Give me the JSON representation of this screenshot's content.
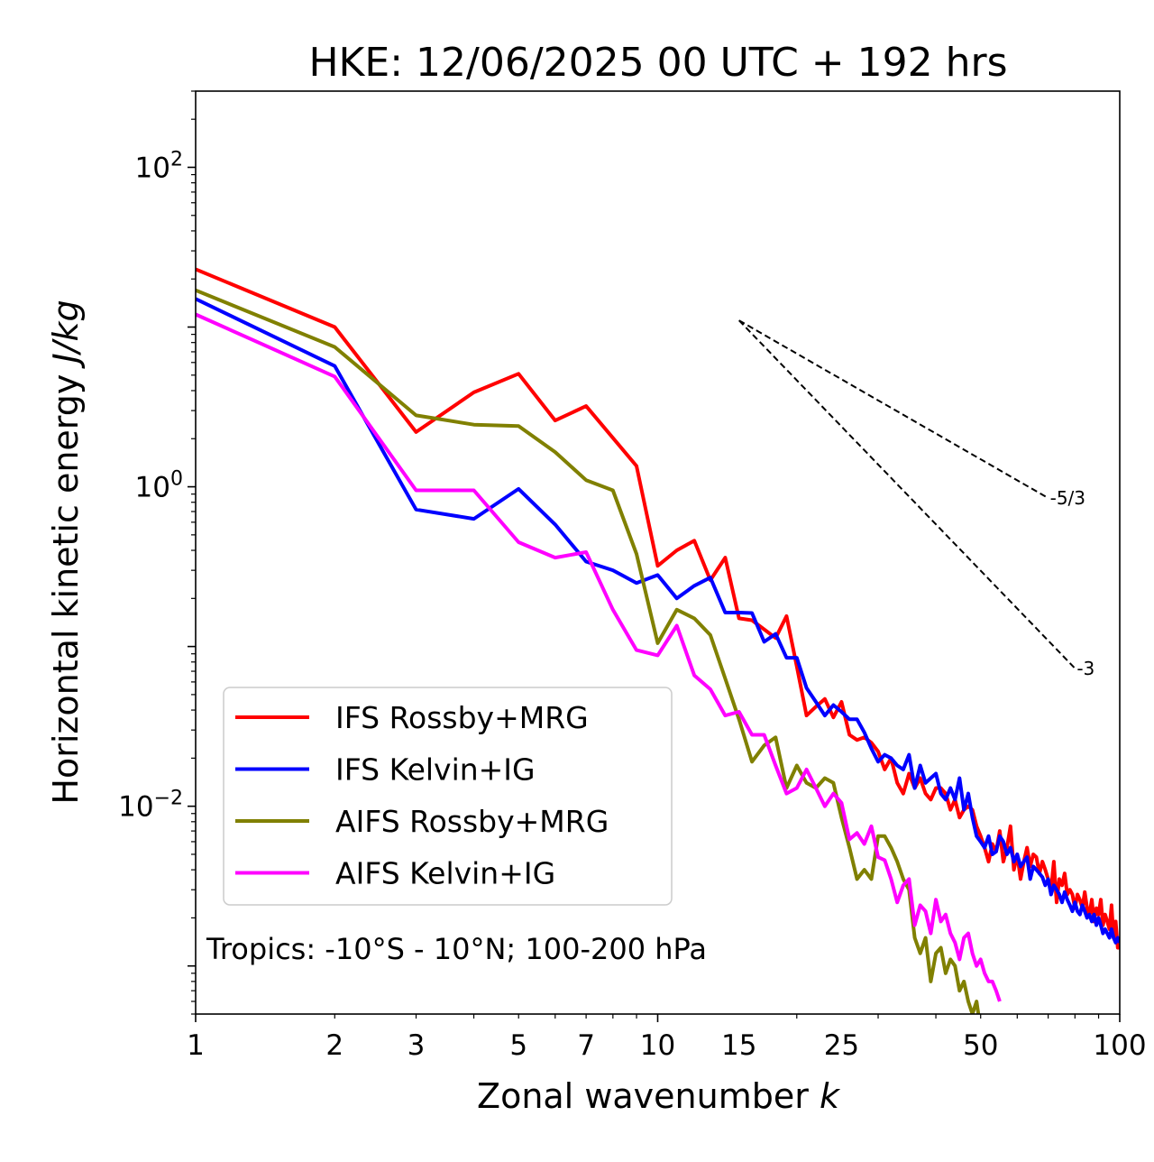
{
  "chart_data": {
    "type": "line",
    "title": "HKE: 12/06/2025 00 UTC + 192 hrs",
    "xlabel": "Zonal wavenumber k",
    "ylabel": "Horizontal kinetic energy J/kg",
    "xscale": "log",
    "yscale": "log",
    "xlim": [
      1,
      100
    ],
    "ylim": [
      0.0005,
      300
    ],
    "x_ticks": [
      1,
      2,
      3,
      5,
      7,
      10,
      15,
      25,
      50,
      100
    ],
    "x_tick_labels": [
      "1",
      "2",
      "3",
      "5",
      "7",
      "10",
      "15",
      "25",
      "50",
      "100"
    ],
    "y_ticks": [
      0.01,
      1,
      100
    ],
    "y_tick_labels": [
      "10",
      "10",
      "10"
    ],
    "y_tick_exponents": [
      "−2",
      "0",
      "2"
    ],
    "annotation": "Tropics: -10°S - 10°N; 100-200 hPa",
    "reference_lines": [
      {
        "label": "-5/3",
        "slope": -1.6667,
        "x": [
          15,
          70
        ],
        "y": [
          11,
          0.85
        ]
      },
      {
        "label": "-3",
        "slope": -3,
        "x": [
          15,
          80
        ],
        "y": [
          11,
          0.073
        ]
      }
    ],
    "legend": {
      "placement": "lower-left"
    },
    "series": [
      {
        "name": "IFS Rossby+MRG",
        "color": "#ff0000",
        "x": [
          1,
          2,
          3,
          4,
          5,
          6,
          7,
          9,
          10,
          11,
          12,
          13,
          14,
          15,
          16,
          17,
          18,
          19,
          20,
          21,
          22,
          23,
          24,
          25,
          26,
          27,
          28,
          29,
          30,
          31,
          32,
          33,
          34,
          35,
          36,
          37,
          38,
          39,
          40,
          41,
          42,
          43,
          44,
          45,
          46,
          47,
          48,
          49,
          50,
          51,
          52,
          53,
          54,
          55,
          56,
          57,
          58,
          59,
          60,
          61,
          62,
          63,
          64,
          65,
          66,
          67,
          68,
          69,
          70,
          71,
          72,
          73,
          74,
          75,
          76,
          77,
          78,
          79,
          80,
          81,
          82,
          83,
          84,
          85,
          86,
          87,
          88,
          89,
          90,
          91,
          92,
          93,
          94,
          95,
          96,
          97,
          98,
          99,
          100
        ],
        "values": [
          23,
          10,
          2.2,
          3.9,
          5.1,
          2.6,
          3.2,
          1.35,
          0.32,
          0.4,
          0.46,
          0.26,
          0.36,
          0.15,
          0.146,
          0.128,
          0.113,
          0.155,
          0.075,
          0.037,
          0.042,
          0.047,
          0.036,
          0.045,
          0.028,
          0.026,
          0.027,
          0.025,
          0.022,
          0.017,
          0.02,
          0.014,
          0.012,
          0.016,
          0.013,
          0.015,
          0.012,
          0.011,
          0.013,
          0.013,
          0.012,
          0.0095,
          0.011,
          0.0085,
          0.0095,
          0.01,
          0.0095,
          0.0075,
          0.0065,
          0.0055,
          0.0045,
          0.0058,
          0.0052,
          0.007,
          0.0045,
          0.0055,
          0.0075,
          0.004,
          0.005,
          0.0035,
          0.0045,
          0.0055,
          0.0042,
          0.005,
          0.0048,
          0.0038,
          0.0045,
          0.004,
          0.0035,
          0.003,
          0.0045,
          0.0025,
          0.0035,
          0.0032,
          0.0038,
          0.0028,
          0.003,
          0.0028,
          0.0023,
          0.0028,
          0.0026,
          0.0023,
          0.0029,
          0.0023,
          0.0021,
          0.0026,
          0.0019,
          0.0023,
          0.0021,
          0.0026,
          0.0018,
          0.0021,
          0.0019,
          0.0017,
          0.0024,
          0.0015,
          0.0019,
          0.0013,
          0.0013
        ]
      },
      {
        "name": "IFS Kelvin+IG",
        "color": "#0000ff",
        "x": [
          1,
          2,
          3,
          4,
          5,
          6,
          7,
          8,
          9,
          10,
          11,
          12,
          13,
          14,
          15,
          16,
          17,
          18,
          19,
          20,
          21,
          22,
          23,
          24,
          25,
          26,
          27,
          28,
          29,
          30,
          31,
          32,
          33,
          34,
          35,
          36,
          37,
          38,
          39,
          40,
          41,
          42,
          43,
          44,
          45,
          46,
          47,
          48,
          49,
          50,
          51,
          52,
          53,
          54,
          55,
          56,
          57,
          58,
          59,
          60,
          61,
          62,
          63,
          64,
          65,
          66,
          67,
          68,
          69,
          70,
          71,
          72,
          73,
          74,
          75,
          76,
          77,
          78,
          79,
          80,
          81,
          82,
          83,
          84,
          85,
          86,
          87,
          88,
          89,
          90,
          91,
          92,
          93,
          94,
          95,
          96,
          97,
          98,
          99,
          100
        ],
        "values": [
          15,
          5.7,
          0.72,
          0.63,
          0.97,
          0.58,
          0.34,
          0.3,
          0.25,
          0.28,
          0.2,
          0.24,
          0.27,
          0.163,
          0.163,
          0.162,
          0.107,
          0.12,
          0.085,
          0.085,
          0.055,
          0.045,
          0.037,
          0.043,
          0.039,
          0.035,
          0.035,
          0.029,
          0.023,
          0.019,
          0.021,
          0.02,
          0.018,
          0.017,
          0.021,
          0.013,
          0.018,
          0.014,
          0.015,
          0.016,
          0.012,
          0.011,
          0.013,
          0.011,
          0.015,
          0.0095,
          0.012,
          0.0085,
          0.0065,
          0.006,
          0.0055,
          0.0065,
          0.005,
          0.0052,
          0.0065,
          0.006,
          0.005,
          0.0055,
          0.0045,
          0.005,
          0.0042,
          0.0045,
          0.0048,
          0.0035,
          0.0042,
          0.004,
          0.0038,
          0.0036,
          0.0032,
          0.0035,
          0.0028,
          0.0032,
          0.003,
          0.0028,
          0.0025,
          0.0029,
          0.0026,
          0.0024,
          0.0022,
          0.0025,
          0.0022,
          0.0021,
          0.0024,
          0.0022,
          0.002,
          0.0021,
          0.0019,
          0.0021,
          0.0018,
          0.002,
          0.0018,
          0.0016,
          0.0017,
          0.0016,
          0.0015,
          0.0017,
          0.0015,
          0.0014,
          0.0015,
          0.0014
        ]
      },
      {
        "name": "AIFS Rossby+MRG",
        "color": "#808000",
        "x": [
          1,
          2,
          3,
          4,
          5,
          6,
          7,
          8,
          9,
          10,
          11,
          12,
          13,
          14,
          15,
          16,
          17,
          18,
          19,
          20,
          21,
          22,
          23,
          24,
          25,
          26,
          27,
          28,
          29,
          30,
          31,
          32,
          33,
          34,
          35,
          36,
          37,
          38,
          39,
          40,
          41,
          42,
          43,
          44,
          45,
          46,
          47,
          48,
          49,
          50
        ],
        "values": [
          17,
          7.5,
          2.8,
          2.45,
          2.4,
          1.65,
          1.1,
          0.95,
          0.38,
          0.105,
          0.17,
          0.15,
          0.118,
          0.063,
          0.035,
          0.019,
          0.024,
          0.027,
          0.013,
          0.018,
          0.014,
          0.013,
          0.015,
          0.014,
          0.0085,
          0.0055,
          0.0035,
          0.004,
          0.0035,
          0.0065,
          0.0065,
          0.0055,
          0.0045,
          0.0035,
          0.003,
          0.0015,
          0.0012,
          0.0015,
          0.0008,
          0.0012,
          0.0013,
          0.0009,
          0.0011,
          0.001,
          0.0007,
          0.0008,
          0.0006,
          0.0005,
          0.0006,
          0.0004
        ]
      },
      {
        "name": "AIFS Kelvin+IG",
        "color": "#ff00ff",
        "x": [
          1,
          2,
          3,
          4,
          5,
          6,
          7,
          8,
          9,
          10,
          11,
          12,
          13,
          14,
          15,
          16,
          17,
          18,
          19,
          20,
          21,
          22,
          23,
          24,
          25,
          26,
          27,
          28,
          29,
          30,
          31,
          32,
          33,
          34,
          35,
          36,
          37,
          38,
          39,
          40,
          41,
          42,
          43,
          44,
          45,
          46,
          47,
          48,
          49,
          50,
          51,
          52,
          53,
          54,
          55
        ],
        "values": [
          12,
          4.9,
          0.95,
          0.95,
          0.45,
          0.36,
          0.39,
          0.17,
          0.095,
          0.088,
          0.135,
          0.066,
          0.054,
          0.037,
          0.039,
          0.028,
          0.028,
          0.018,
          0.012,
          0.013,
          0.017,
          0.013,
          0.01,
          0.012,
          0.0105,
          0.0062,
          0.0068,
          0.0058,
          0.0075,
          0.0048,
          0.0046,
          0.0035,
          0.0025,
          0.0032,
          0.0035,
          0.0018,
          0.0024,
          0.0022,
          0.0016,
          0.0026,
          0.0019,
          0.0021,
          0.0016,
          0.0014,
          0.0011,
          0.0015,
          0.0016,
          0.0012,
          0.001,
          0.0011,
          0.0009,
          0.0008,
          0.0008,
          0.0007,
          0.0006
        ]
      }
    ]
  }
}
